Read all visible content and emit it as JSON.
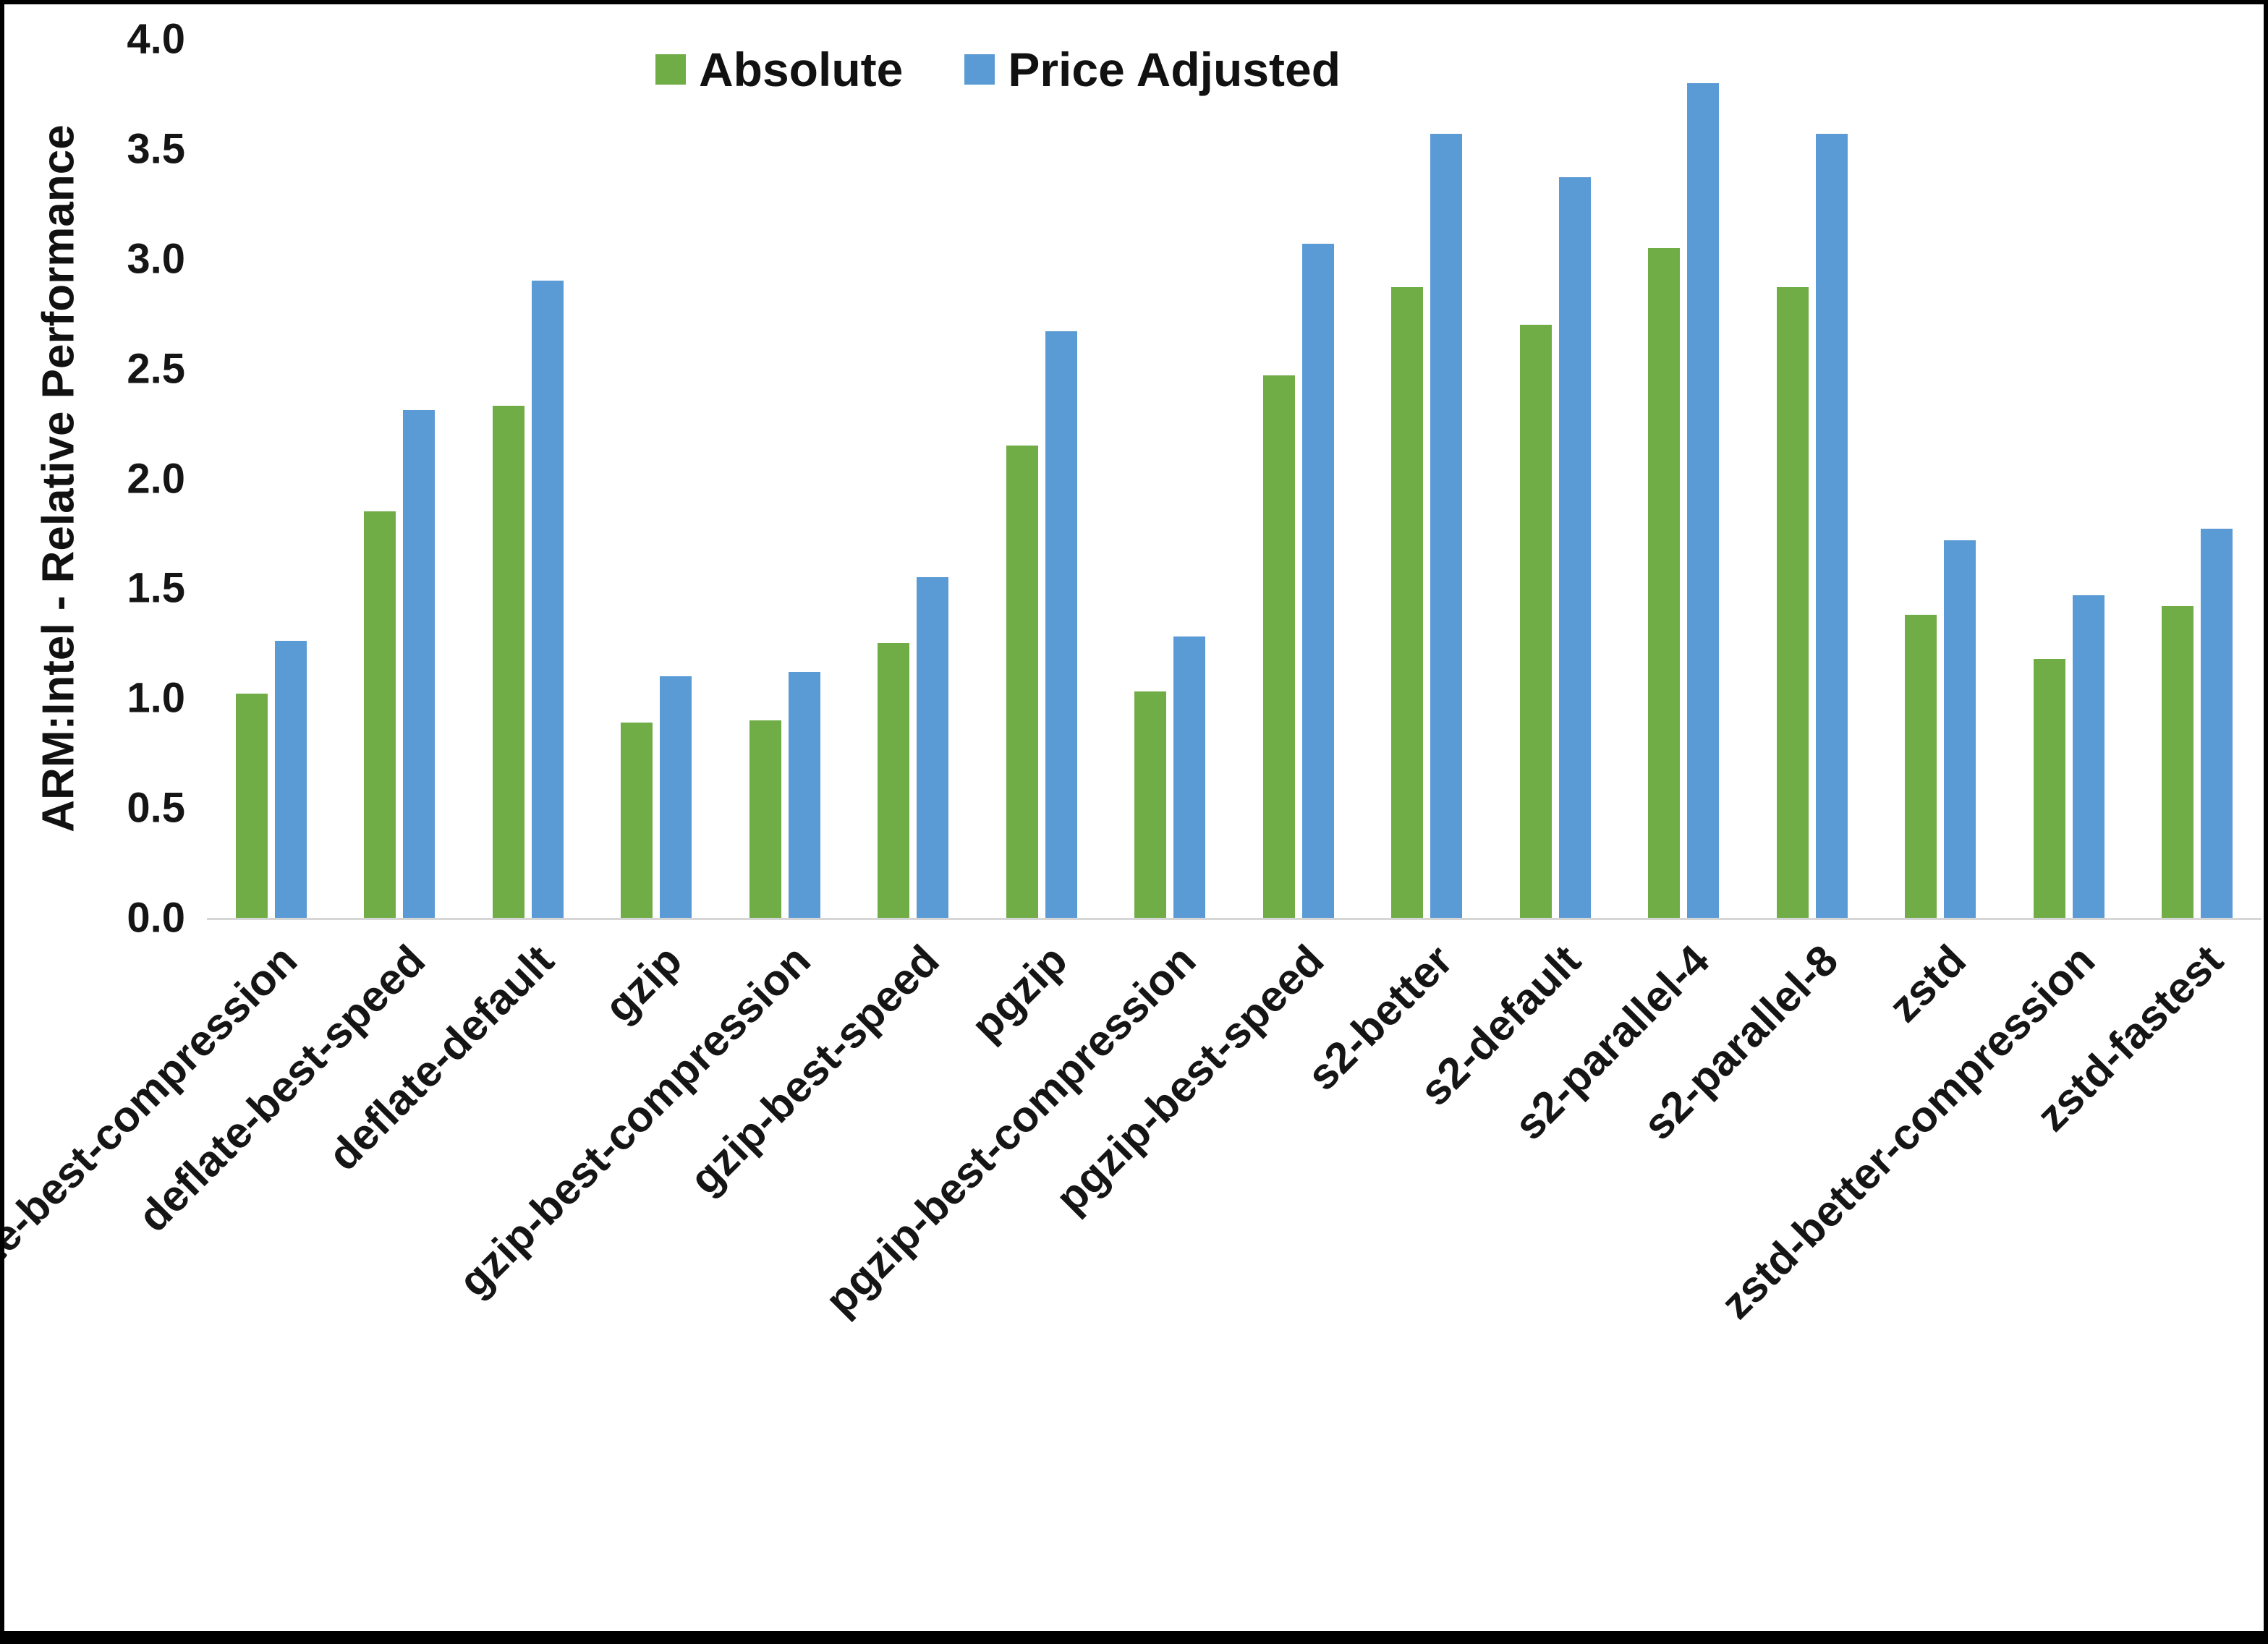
{
  "chart_data": {
    "type": "bar",
    "title": "",
    "xlabel": "",
    "ylabel": "ARM:Intel - Relative Performance",
    "ylim": [
      0,
      4.0
    ],
    "ytick_step": 0.5,
    "grid": false,
    "legend_position": "top-center",
    "categories": [
      "deflate-best-compression",
      "deflate-best-speed",
      "deflate-default",
      "gzip",
      "gzip-best-compression",
      "gzip-best-speed",
      "pgzip",
      "pgzip-best-compression",
      "pgzip-best-speed",
      "s2-better",
      "s2-default",
      "s2-parallel-4",
      "s2-parallel-8",
      "zstd",
      "zstd-better-compression",
      "zstd-fastest"
    ],
    "series": [
      {
        "name": "Absolute",
        "color": "#70AD47",
        "values": [
          1.02,
          1.85,
          2.33,
          0.89,
          0.9,
          1.25,
          2.15,
          1.03,
          2.47,
          2.87,
          2.7,
          3.05,
          2.87,
          1.38,
          1.18,
          1.42
        ]
      },
      {
        "name": "Price Adjusted",
        "color": "#5B9BD5",
        "values": [
          1.26,
          2.31,
          2.9,
          1.1,
          1.12,
          1.55,
          2.67,
          1.28,
          3.07,
          3.57,
          3.37,
          3.8,
          3.57,
          1.72,
          1.47,
          1.77
        ]
      }
    ]
  }
}
